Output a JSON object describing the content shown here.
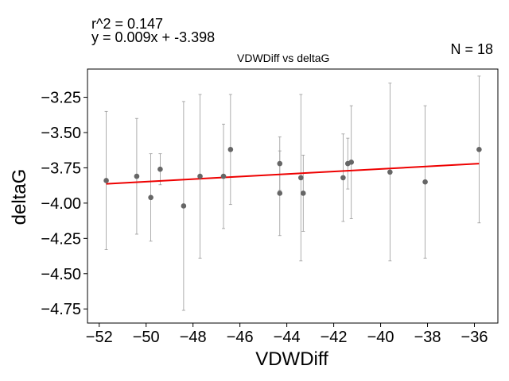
{
  "annotations": {
    "r2": "r^2 = 0.147",
    "equation": "y = 0.009x + -3.398",
    "n": "N = 18"
  },
  "chart_data": {
    "type": "scatter",
    "title": "VDWDiff vs deltaG",
    "xlabel": "VDWDiff",
    "ylabel": "deltaG",
    "xlim": [
      -52.5,
      -35.0
    ],
    "ylim": [
      -4.85,
      -3.05
    ],
    "xticks": [
      -52,
      -50,
      -48,
      -46,
      -44,
      -42,
      -40,
      -38,
      -36
    ],
    "xtick_labels": [
      "−52",
      "−50",
      "−48",
      "−46",
      "−44",
      "−42",
      "−40",
      "−38",
      "−36"
    ],
    "yticks": [
      -3.25,
      -3.5,
      -3.75,
      -4.0,
      -4.25,
      -4.5,
      -4.75
    ],
    "ytick_labels": [
      "−3.25",
      "−3.50",
      "−3.75",
      "−4.00",
      "−4.25",
      "−4.50",
      "−4.75"
    ],
    "grid": false,
    "colors": {
      "points": "#666666",
      "errorbars": "#999999",
      "fit": "#ee0000"
    },
    "points": [
      {
        "x": -51.7,
        "y": -3.84,
        "err": 0.49
      },
      {
        "x": -50.4,
        "y": -3.81,
        "err": 0.41
      },
      {
        "x": -49.8,
        "y": -3.96,
        "err": 0.31
      },
      {
        "x": -49.4,
        "y": -3.76,
        "err": 0.11
      },
      {
        "x": -48.4,
        "y": -4.02,
        "err": 0.74
      },
      {
        "x": -47.7,
        "y": -3.81,
        "err": 0.58
      },
      {
        "x": -46.7,
        "y": -3.81,
        "err": 0.37
      },
      {
        "x": -46.4,
        "y": -3.62,
        "err": 0.39
      },
      {
        "x": -44.3,
        "y": -3.72,
        "err": 0.19
      },
      {
        "x": -44.3,
        "y": -3.93,
        "err": 0.3
      },
      {
        "x": -43.4,
        "y": -3.82,
        "err": 0.59
      },
      {
        "x": -43.3,
        "y": -3.93,
        "err": 0.27
      },
      {
        "x": -41.6,
        "y": -3.82,
        "err": 0.31
      },
      {
        "x": -41.4,
        "y": -3.72,
        "err": 0.18
      },
      {
        "x": -41.25,
        "y": -3.71,
        "err": 0.4
      },
      {
        "x": -39.6,
        "y": -3.78,
        "err": 0.63
      },
      {
        "x": -38.1,
        "y": -3.85,
        "err": 0.54
      },
      {
        "x": -35.8,
        "y": -3.62,
        "err": 0.52
      }
    ],
    "fit": {
      "slope": 0.009,
      "intercept": -3.398,
      "x_range": [
        -51.7,
        -35.8
      ]
    }
  }
}
